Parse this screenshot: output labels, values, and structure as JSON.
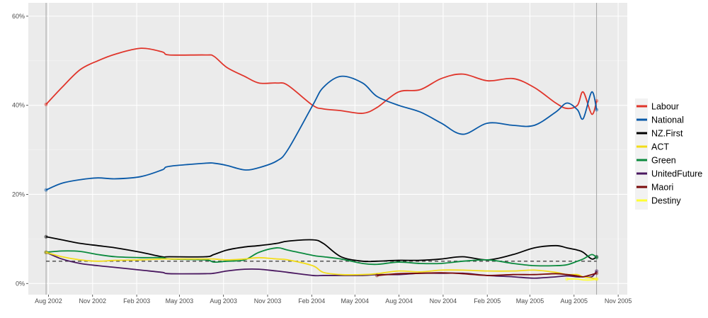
{
  "chart_data": {
    "type": "line",
    "title": "",
    "xlabel": "",
    "ylabel": "",
    "xlim": [
      "2002-06-20",
      "2005-11-20"
    ],
    "ylim": [
      -2.5,
      63
    ],
    "grid": true,
    "legend_position": "right",
    "x_ticks": [
      {
        "date": "2002-08-01",
        "label": "Aug 2002"
      },
      {
        "date": "2002-11-01",
        "label": "Nov 2002"
      },
      {
        "date": "2003-02-01",
        "label": "Feb 2003"
      },
      {
        "date": "2003-05-01",
        "label": "May 2003"
      },
      {
        "date": "2003-08-01",
        "label": "Aug 2003"
      },
      {
        "date": "2003-11-01",
        "label": "Nov 2003"
      },
      {
        "date": "2004-02-01",
        "label": "Feb 2004"
      },
      {
        "date": "2004-05-01",
        "label": "May 2004"
      },
      {
        "date": "2004-08-01",
        "label": "Aug 2004"
      },
      {
        "date": "2004-11-01",
        "label": "Nov 2004"
      },
      {
        "date": "2005-02-01",
        "label": "Feb 2005"
      },
      {
        "date": "2005-05-01",
        "label": "May 2005"
      },
      {
        "date": "2005-08-01",
        "label": "Aug 2005"
      },
      {
        "date": "2005-11-01",
        "label": "Nov 2005"
      }
    ],
    "y_ticks": [
      {
        "value": 0,
        "label": "0%"
      },
      {
        "value": 20,
        "label": "20%"
      },
      {
        "value": 40,
        "label": "40%"
      },
      {
        "value": 60,
        "label": "60%"
      }
    ],
    "election_markers": [
      "2002-07-27",
      "2005-09-17"
    ],
    "threshold": {
      "value": 5,
      "style": "dashed"
    },
    "x": [
      "2002-07-27",
      "2002-08-29",
      "2002-10-06",
      "2002-11-12",
      "2002-12-19",
      "2003-02-10",
      "2003-03-26",
      "2003-04-10",
      "2003-06-24",
      "2003-07-12",
      "2003-08-08",
      "2003-09-14",
      "2003-10-14",
      "2003-11-20",
      "2003-12-13",
      "2004-02-03",
      "2004-02-25",
      "2004-04-02",
      "2004-05-17",
      "2004-06-16",
      "2004-07-31",
      "2004-09-14",
      "2004-10-28",
      "2004-12-12",
      "2005-02-02",
      "2005-03-27",
      "2005-05-10",
      "2005-06-24",
      "2005-07-17",
      "2005-08-08",
      "2005-08-20",
      "2005-09-07",
      "2005-09-17"
    ],
    "series": [
      {
        "name": "Labour",
        "color": "#e0352b",
        "values": [
          40.2,
          44,
          48,
          50,
          51.5,
          52.8,
          52,
          51.3,
          51.3,
          51,
          48.5,
          46.5,
          45,
          45,
          44.5,
          40,
          39.2,
          38.8,
          38.2,
          39.5,
          43,
          43.5,
          46,
          47,
          45.5,
          46,
          44,
          40.5,
          39.3,
          40,
          43,
          38,
          41
        ]
      },
      {
        "name": "National",
        "color": "#0a5aa8",
        "values": [
          21,
          22.5,
          23.3,
          23.7,
          23.5,
          24,
          25.5,
          26.3,
          27,
          27,
          26.5,
          25.5,
          26,
          27.5,
          30,
          40,
          44,
          46.5,
          45,
          42,
          40,
          38.5,
          36,
          33.5,
          36,
          35.5,
          35.5,
          38.5,
          40.5,
          39,
          37,
          43,
          39
        ]
      },
      {
        "name": "NZ.First",
        "color": "#000000",
        "values": [
          10.5,
          9.8,
          9,
          8.5,
          8,
          7,
          6,
          6,
          6,
          6.5,
          7.5,
          8.2,
          8.5,
          9,
          9.5,
          9.8,
          9,
          6,
          5,
          5,
          5.2,
          5.2,
          5.5,
          6,
          5.3,
          6.5,
          8,
          8.5,
          8,
          7.5,
          7,
          5.5,
          6
        ]
      },
      {
        "name": "ACT",
        "color": "#f2dc1a",
        "values": [
          7,
          6,
          5.3,
          5,
          5.2,
          5.3,
          5.5,
          5.5,
          5.5,
          5.5,
          5.3,
          5.5,
          5.8,
          5.5,
          5.3,
          4,
          2.5,
          2,
          2,
          2.2,
          2.8,
          2.6,
          3,
          3,
          2.8,
          2.8,
          3,
          2.5,
          2,
          2,
          1.5,
          1.2,
          1
        ]
      },
      {
        "name": "Green",
        "color": "#0b8a3e",
        "values": [
          7,
          7.3,
          7.2,
          6.5,
          6,
          5.8,
          5.8,
          5.5,
          5.3,
          4.8,
          5,
          5.3,
          7,
          8,
          7.5,
          6.3,
          6,
          5.5,
          4.5,
          4.3,
          4.8,
          4.5,
          4.5,
          5,
          5.3,
          4.5,
          4,
          4,
          4.2,
          5,
          5.5,
          6.5,
          5.8
        ]
      },
      {
        "name": "UnitedFuture",
        "color": "#4a1860",
        "values": [
          7,
          5.5,
          4.5,
          4,
          3.6,
          3,
          2.5,
          2.2,
          2.2,
          2.3,
          2.8,
          3.2,
          3.2,
          2.8,
          2.5,
          1.8,
          1.8,
          1.8,
          1.8,
          2,
          2,
          2.3,
          2.3,
          2.3,
          1.8,
          1.5,
          1.2,
          1.5,
          1.7,
          1.5,
          1.5,
          1.5,
          2.8
        ]
      },
      {
        "name": "Maori",
        "color": "#7a0a0a",
        "values": [
          null,
          null,
          null,
          null,
          null,
          null,
          null,
          null,
          null,
          null,
          null,
          null,
          null,
          null,
          null,
          null,
          null,
          null,
          null,
          1.8,
          2.2,
          2.3,
          2.4,
          2.2,
          1.8,
          2,
          2,
          2.2,
          2,
          1.7,
          1.5,
          2,
          2.3
        ]
      },
      {
        "name": "Destiny",
        "color": "#ffff33",
        "values": [
          null,
          null,
          null,
          null,
          null,
          null,
          null,
          null,
          null,
          null,
          null,
          null,
          null,
          null,
          null,
          null,
          null,
          null,
          null,
          null,
          null,
          null,
          null,
          null,
          null,
          null,
          null,
          null,
          1,
          1,
          0.8,
          0.8,
          1
        ]
      }
    ]
  }
}
